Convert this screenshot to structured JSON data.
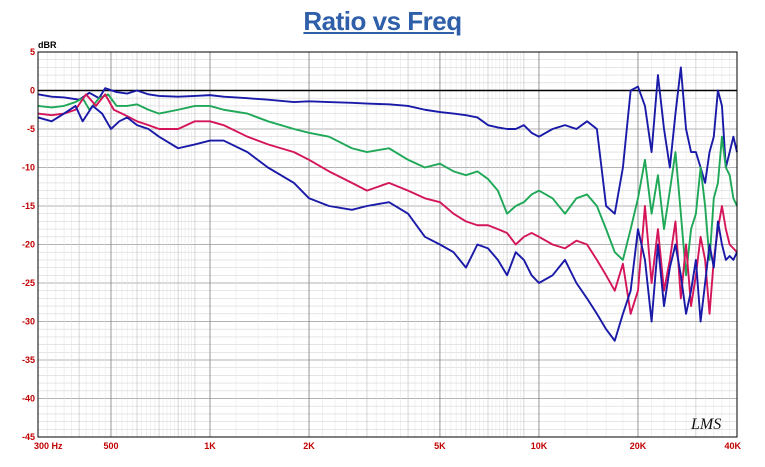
{
  "chart_data": {
    "type": "line",
    "title": "Ratio vs Freq",
    "ylabel": "dBR",
    "xlabel": "",
    "x_scale": "log",
    "xlim": [
      300,
      40000
    ],
    "ylim": [
      -45,
      5
    ],
    "y_ticks": [
      "5",
      "0",
      "-5",
      "-10",
      "-15",
      "-20",
      "-25",
      "-30",
      "-35",
      "-40",
      "-45"
    ],
    "x_ticks": [
      {
        "value": 300,
        "label": "300 Hz"
      },
      {
        "value": 500,
        "label": "500"
      },
      {
        "value": 1000,
        "label": "1K"
      },
      {
        "value": 2000,
        "label": "2K"
      },
      {
        "value": 5000,
        "label": "5K"
      },
      {
        "value": 10000,
        "label": "10K"
      },
      {
        "value": 20000,
        "label": "20K"
      },
      {
        "value": 40000,
        "label": "40K"
      }
    ],
    "grid": true,
    "watermark": "LMS",
    "series": [
      {
        "color": "#1a1aa8",
        "points": [
          [
            300,
            -0.5
          ],
          [
            330,
            -0.8
          ],
          [
            360,
            -0.9
          ],
          [
            400,
            -1.2
          ],
          [
            430,
            -0.3
          ],
          [
            460,
            -1.0
          ],
          [
            480,
            0.3
          ],
          [
            520,
            -0.2
          ],
          [
            560,
            -0.4
          ],
          [
            600,
            0.0
          ],
          [
            650,
            -0.5
          ],
          [
            700,
            -0.7
          ],
          [
            800,
            -0.8
          ],
          [
            900,
            -0.7
          ],
          [
            1000,
            -0.6
          ],
          [
            1100,
            -0.8
          ],
          [
            1300,
            -1.0
          ],
          [
            1500,
            -1.2
          ],
          [
            1800,
            -1.5
          ],
          [
            2000,
            -1.4
          ],
          [
            2300,
            -1.5
          ],
          [
            2700,
            -1.6
          ],
          [
            3000,
            -1.7
          ],
          [
            3500,
            -1.8
          ],
          [
            4000,
            -2.0
          ],
          [
            4500,
            -2.5
          ],
          [
            5000,
            -2.8
          ],
          [
            5500,
            -3.0
          ],
          [
            6000,
            -3.2
          ],
          [
            6500,
            -3.5
          ],
          [
            7000,
            -4.5
          ],
          [
            7500,
            -4.8
          ],
          [
            8000,
            -5.0
          ],
          [
            8500,
            -5.0
          ],
          [
            9000,
            -4.5
          ],
          [
            9500,
            -5.5
          ],
          [
            10000,
            -6.0
          ],
          [
            11000,
            -5.0
          ],
          [
            12000,
            -4.5
          ],
          [
            13000,
            -5.0
          ],
          [
            14000,
            -4.0
          ],
          [
            15000,
            -5.0
          ],
          [
            16000,
            -15.0
          ],
          [
            17000,
            -16.0
          ],
          [
            18000,
            -10.0
          ],
          [
            19000,
            0.0
          ],
          [
            20000,
            0.5
          ],
          [
            21000,
            -2.0
          ],
          [
            22000,
            -8.0
          ],
          [
            23000,
            2.0
          ],
          [
            24000,
            -5.0
          ],
          [
            25000,
            -10.0
          ],
          [
            26000,
            -3.0
          ],
          [
            27000,
            3.0
          ],
          [
            28000,
            -5.0
          ],
          [
            29000,
            -8.0
          ],
          [
            30000,
            -8.0
          ],
          [
            31000,
            -10.0
          ],
          [
            32000,
            -12.0
          ],
          [
            33000,
            -8.0
          ],
          [
            34000,
            -6.0
          ],
          [
            35000,
            0.0
          ],
          [
            36000,
            -2.0
          ],
          [
            37000,
            -10.0
          ],
          [
            38000,
            -8.0
          ],
          [
            39000,
            -6.0
          ],
          [
            40000,
            -8.0
          ]
        ]
      },
      {
        "color": "#1fa857",
        "points": [
          [
            300,
            -2.0
          ],
          [
            330,
            -2.2
          ],
          [
            360,
            -2.0
          ],
          [
            390,
            -1.5
          ],
          [
            410,
            -1.0
          ],
          [
            430,
            -2.5
          ],
          [
            460,
            -1.0
          ],
          [
            490,
            -0.5
          ],
          [
            520,
            -2.0
          ],
          [
            560,
            -2.0
          ],
          [
            600,
            -1.8
          ],
          [
            650,
            -2.5
          ],
          [
            700,
            -3.0
          ],
          [
            800,
            -2.5
          ],
          [
            900,
            -2.0
          ],
          [
            1000,
            -2.0
          ],
          [
            1100,
            -2.5
          ],
          [
            1300,
            -3.0
          ],
          [
            1500,
            -4.0
          ],
          [
            1800,
            -5.0
          ],
          [
            2000,
            -5.5
          ],
          [
            2300,
            -6.0
          ],
          [
            2700,
            -7.5
          ],
          [
            3000,
            -8.0
          ],
          [
            3500,
            -7.5
          ],
          [
            4000,
            -9.0
          ],
          [
            4500,
            -10.0
          ],
          [
            5000,
            -9.5
          ],
          [
            5500,
            -10.5
          ],
          [
            6000,
            -11.0
          ],
          [
            6500,
            -10.5
          ],
          [
            7000,
            -11.5
          ],
          [
            7500,
            -13.0
          ],
          [
            8000,
            -16.0
          ],
          [
            8500,
            -15.0
          ],
          [
            9000,
            -14.5
          ],
          [
            9500,
            -13.5
          ],
          [
            10000,
            -13.0
          ],
          [
            11000,
            -14.0
          ],
          [
            12000,
            -16.0
          ],
          [
            13000,
            -14.0
          ],
          [
            14000,
            -13.5
          ],
          [
            15000,
            -15.0
          ],
          [
            16000,
            -18.0
          ],
          [
            17000,
            -21.0
          ],
          [
            18000,
            -22.0
          ],
          [
            19000,
            -18.0
          ],
          [
            20000,
            -14.0
          ],
          [
            21000,
            -9.0
          ],
          [
            22000,
            -16.0
          ],
          [
            23000,
            -11.0
          ],
          [
            24000,
            -18.0
          ],
          [
            25000,
            -13.0
          ],
          [
            26000,
            -8.0
          ],
          [
            27000,
            -16.0
          ],
          [
            28000,
            -24.0
          ],
          [
            29000,
            -18.0
          ],
          [
            30000,
            -16.0
          ],
          [
            31000,
            -10.0
          ],
          [
            32000,
            -15.0
          ],
          [
            33000,
            -22.0
          ],
          [
            34000,
            -14.0
          ],
          [
            35000,
            -12.0
          ],
          [
            36000,
            -6.0
          ],
          [
            37000,
            -10.0
          ],
          [
            38000,
            -11.0
          ],
          [
            39000,
            -14.0
          ],
          [
            40000,
            -15.0
          ]
        ]
      },
      {
        "color": "#d4155a",
        "points": [
          [
            300,
            -3.0
          ],
          [
            330,
            -3.2
          ],
          [
            360,
            -3.0
          ],
          [
            390,
            -2.5
          ],
          [
            420,
            -0.5
          ],
          [
            450,
            -2.0
          ],
          [
            480,
            -0.5
          ],
          [
            510,
            -2.5
          ],
          [
            540,
            -3.0
          ],
          [
            570,
            -3.5
          ],
          [
            600,
            -4.0
          ],
          [
            650,
            -4.5
          ],
          [
            700,
            -5.0
          ],
          [
            800,
            -5.0
          ],
          [
            900,
            -4.0
          ],
          [
            1000,
            -4.0
          ],
          [
            1100,
            -4.5
          ],
          [
            1300,
            -6.0
          ],
          [
            1500,
            -7.0
          ],
          [
            1800,
            -8.0
          ],
          [
            2000,
            -9.0
          ],
          [
            2300,
            -10.5
          ],
          [
            2700,
            -12.0
          ],
          [
            3000,
            -13.0
          ],
          [
            3500,
            -12.0
          ],
          [
            4000,
            -13.0
          ],
          [
            4500,
            -14.0
          ],
          [
            5000,
            -14.5
          ],
          [
            5500,
            -16.0
          ],
          [
            6000,
            -17.0
          ],
          [
            6500,
            -17.5
          ],
          [
            7000,
            -17.5
          ],
          [
            7500,
            -18.0
          ],
          [
            8000,
            -18.5
          ],
          [
            8500,
            -20.0
          ],
          [
            9000,
            -19.0
          ],
          [
            9500,
            -18.5
          ],
          [
            10000,
            -19.0
          ],
          [
            11000,
            -20.0
          ],
          [
            12000,
            -20.5
          ],
          [
            13000,
            -19.5
          ],
          [
            14000,
            -20.0
          ],
          [
            15000,
            -22.0
          ],
          [
            16000,
            -24.0
          ],
          [
            17000,
            -26.0
          ],
          [
            18000,
            -22.5
          ],
          [
            19000,
            -29.0
          ],
          [
            20000,
            -26.0
          ],
          [
            21000,
            -15.0
          ],
          [
            22000,
            -25.0
          ],
          [
            23000,
            -18.0
          ],
          [
            24000,
            -26.0
          ],
          [
            25000,
            -22.0
          ],
          [
            26000,
            -17.0
          ],
          [
            27000,
            -27.0
          ],
          [
            28000,
            -20.0
          ],
          [
            29000,
            -28.0
          ],
          [
            30000,
            -24.0
          ],
          [
            31000,
            -19.0
          ],
          [
            32000,
            -22.0
          ],
          [
            33000,
            -29.0
          ],
          [
            34000,
            -22.0
          ],
          [
            35000,
            -18.0
          ],
          [
            36000,
            -15.0
          ],
          [
            37000,
            -18.0
          ],
          [
            38000,
            -20.0
          ],
          [
            39000,
            -20.5
          ],
          [
            40000,
            -21.0
          ]
        ]
      },
      {
        "color": "#1a1aa8",
        "points": [
          [
            300,
            -3.5
          ],
          [
            330,
            -4.0
          ],
          [
            360,
            -3.0
          ],
          [
            390,
            -2.0
          ],
          [
            410,
            -4.0
          ],
          [
            440,
            -2.0
          ],
          [
            470,
            -3.0
          ],
          [
            500,
            -5.0
          ],
          [
            530,
            -4.0
          ],
          [
            560,
            -3.5
          ],
          [
            600,
            -4.5
          ],
          [
            650,
            -5.0
          ],
          [
            700,
            -6.0
          ],
          [
            800,
            -7.5
          ],
          [
            900,
            -7.0
          ],
          [
            1000,
            -6.5
          ],
          [
            1100,
            -6.5
          ],
          [
            1300,
            -8.0
          ],
          [
            1500,
            -10.0
          ],
          [
            1800,
            -12.0
          ],
          [
            2000,
            -14.0
          ],
          [
            2300,
            -15.0
          ],
          [
            2700,
            -15.5
          ],
          [
            3000,
            -15.0
          ],
          [
            3500,
            -14.5
          ],
          [
            4000,
            -16.0
          ],
          [
            4500,
            -19.0
          ],
          [
            5000,
            -20.0
          ],
          [
            5500,
            -21.0
          ],
          [
            6000,
            -23.0
          ],
          [
            6500,
            -20.0
          ],
          [
            7000,
            -20.5
          ],
          [
            7500,
            -22.0
          ],
          [
            8000,
            -24.0
          ],
          [
            8500,
            -21.0
          ],
          [
            9000,
            -22.0
          ],
          [
            9500,
            -24.0
          ],
          [
            10000,
            -25.0
          ],
          [
            11000,
            -24.0
          ],
          [
            12000,
            -22.0
          ],
          [
            13000,
            -25.0
          ],
          [
            14000,
            -27.0
          ],
          [
            15000,
            -29.0
          ],
          [
            16000,
            -31.0
          ],
          [
            17000,
            -32.5
          ],
          [
            18000,
            -29.0
          ],
          [
            19000,
            -26.0
          ],
          [
            20000,
            -18.0
          ],
          [
            21000,
            -22.0
          ],
          [
            22000,
            -30.0
          ],
          [
            23000,
            -20.0
          ],
          [
            24000,
            -28.0
          ],
          [
            25000,
            -23.0
          ],
          [
            26000,
            -20.0
          ],
          [
            27000,
            -24.0
          ],
          [
            28000,
            -29.0
          ],
          [
            29000,
            -26.0
          ],
          [
            30000,
            -22.0
          ],
          [
            31000,
            -30.0
          ],
          [
            32000,
            -25.0
          ],
          [
            33000,
            -20.0
          ],
          [
            34000,
            -23.0
          ],
          [
            35000,
            -17.0
          ],
          [
            36000,
            -20.0
          ],
          [
            37000,
            -22.0
          ],
          [
            38000,
            -21.5
          ],
          [
            39000,
            -22.0
          ],
          [
            40000,
            -21.0
          ]
        ]
      }
    ]
  }
}
